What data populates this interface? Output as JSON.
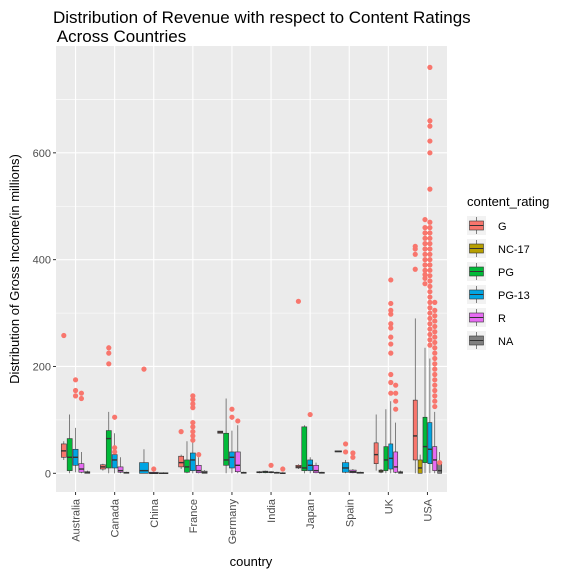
{
  "chart_data": {
    "type": "boxplot",
    "title_line1": "Distribution of Revenue with respect to Content Ratings",
    "title_line2": " Across Countries",
    "xlabel": "country",
    "ylabel": "Distribution of Gross Income(in millions)",
    "ylim": [
      -35,
      800
    ],
    "yticks": [
      0,
      200,
      400,
      600
    ],
    "grid": true,
    "legend": {
      "title": "content_rating",
      "placement": "right"
    },
    "series": [
      {
        "name": "G",
        "color": "#F8766D"
      },
      {
        "name": "NC-17",
        "color": "#B79F00"
      },
      {
        "name": "PG",
        "color": "#00BA38"
      },
      {
        "name": "PG-13",
        "color": "#00A5E3"
      },
      {
        "name": "R",
        "color": "#E76BF3"
      },
      {
        "name": "NA",
        "color": "#7F7F7F"
      }
    ],
    "categories": [
      "Australia",
      "Canada",
      "China",
      "France",
      "Germany",
      "India",
      "Japan",
      "Spain",
      "UK",
      "USA"
    ],
    "groups": [
      {
        "country": "Australia",
        "boxes": [
          {
            "series": "G",
            "q1": 30,
            "median": 42,
            "q3": 55,
            "lo": 25,
            "hi": 60
          },
          {
            "series": "PG",
            "q1": 5,
            "median": 30,
            "q3": 65,
            "lo": 0,
            "hi": 110
          },
          {
            "series": "PG-13",
            "q1": 15,
            "median": 30,
            "q3": 45,
            "lo": 2,
            "hi": 85
          },
          {
            "series": "R",
            "q1": 2,
            "median": 8,
            "q3": 18,
            "lo": 0,
            "hi": 40
          },
          {
            "series": "NA",
            "q1": 0,
            "median": 1,
            "q3": 3,
            "lo": 0,
            "hi": 5
          }
        ]
      },
      {
        "country": "Canada",
        "boxes": [
          {
            "series": "G",
            "q1": 8,
            "median": 12,
            "q3": 16,
            "lo": 5,
            "hi": 18
          },
          {
            "series": "PG",
            "q1": 10,
            "median": 65,
            "q3": 80,
            "lo": 0,
            "hi": 115
          },
          {
            "series": "PG-13",
            "q1": 10,
            "median": 25,
            "q3": 35,
            "lo": 0,
            "hi": 75
          },
          {
            "series": "R",
            "q1": 2,
            "median": 5,
            "q3": 12,
            "lo": 0,
            "hi": 30
          },
          {
            "series": "NA",
            "q1": 0,
            "median": 1,
            "q3": 2,
            "lo": 0,
            "hi": 3
          }
        ]
      },
      {
        "country": "China",
        "boxes": [
          {
            "series": "PG-13",
            "q1": 0,
            "median": 5,
            "q3": 20,
            "lo": 0,
            "hi": 45
          },
          {
            "series": "R",
            "q1": 0,
            "median": 0,
            "q3": 2,
            "lo": 0,
            "hi": 3
          },
          {
            "series": "NA",
            "q1": 0,
            "median": 0,
            "q3": 1,
            "lo": 0,
            "hi": 2
          }
        ]
      },
      {
        "country": "France",
        "boxes": [
          {
            "series": "G",
            "q1": 12,
            "median": 20,
            "q3": 32,
            "lo": 8,
            "hi": 35
          },
          {
            "series": "PG",
            "q1": 2,
            "median": 12,
            "q3": 25,
            "lo": 0,
            "hi": 60
          },
          {
            "series": "PG-13",
            "q1": 5,
            "median": 25,
            "q3": 38,
            "lo": 0,
            "hi": 80
          },
          {
            "series": "R",
            "q1": 1,
            "median": 5,
            "q3": 15,
            "lo": 0,
            "hi": 30
          },
          {
            "series": "NA",
            "q1": 0,
            "median": 1,
            "q3": 4,
            "lo": 0,
            "hi": 6
          }
        ]
      },
      {
        "country": "Germany",
        "boxes": [
          {
            "series": "G",
            "q1": 75,
            "median": 77,
            "q3": 79,
            "lo": 75,
            "hi": 79
          },
          {
            "series": "PG",
            "q1": 15,
            "median": 25,
            "q3": 75,
            "lo": 0,
            "hi": 140
          },
          {
            "series": "PG-13",
            "q1": 10,
            "median": 30,
            "q3": 40,
            "lo": 0,
            "hi": 80
          },
          {
            "series": "R",
            "q1": 3,
            "median": 15,
            "q3": 40,
            "lo": 0,
            "hi": 90
          },
          {
            "series": "NA",
            "q1": 0,
            "median": 1,
            "q3": 2,
            "lo": 0,
            "hi": 3
          }
        ]
      },
      {
        "country": "India",
        "boxes": [
          {
            "series": "G",
            "q1": 1,
            "median": 2,
            "q3": 3,
            "lo": 0,
            "hi": 4
          },
          {
            "series": "PG",
            "q1": 1,
            "median": 3,
            "q3": 4,
            "lo": 0,
            "hi": 5
          },
          {
            "series": "PG-13",
            "q1": 1,
            "median": 2,
            "q3": 3,
            "lo": 0,
            "hi": 4
          },
          {
            "series": "R",
            "q1": 0,
            "median": 1,
            "q3": 2,
            "lo": 0,
            "hi": 3
          },
          {
            "series": "NA",
            "q1": 0,
            "median": 0,
            "q3": 1,
            "lo": 0,
            "hi": 2
          }
        ]
      },
      {
        "country": "Japan",
        "boxes": [
          {
            "series": "G",
            "q1": 10,
            "median": 12,
            "q3": 15,
            "lo": 8,
            "hi": 17
          },
          {
            "series": "PG",
            "q1": 5,
            "median": 10,
            "q3": 87,
            "lo": 0,
            "hi": 90
          },
          {
            "series": "PG-13",
            "q1": 5,
            "median": 15,
            "q3": 25,
            "lo": 0,
            "hi": 30
          },
          {
            "series": "R",
            "q1": 1,
            "median": 5,
            "q3": 15,
            "lo": 0,
            "hi": 20
          },
          {
            "series": "NA",
            "q1": 0,
            "median": 1,
            "q3": 2,
            "lo": 0,
            "hi": 3
          }
        ]
      },
      {
        "country": "Spain",
        "boxes": [
          {
            "series": "G",
            "q1": 40,
            "median": 41,
            "q3": 42,
            "lo": 40,
            "hi": 42
          },
          {
            "series": "PG-13",
            "q1": 2,
            "median": 10,
            "q3": 20,
            "lo": 0,
            "hi": 25
          },
          {
            "series": "R",
            "q1": 1,
            "median": 3,
            "q3": 6,
            "lo": 0,
            "hi": 8
          },
          {
            "series": "NA",
            "q1": 0,
            "median": 1,
            "q3": 2,
            "lo": 0,
            "hi": 3
          }
        ]
      },
      {
        "country": "UK",
        "boxes": [
          {
            "series": "G",
            "q1": 18,
            "median": 35,
            "q3": 57,
            "lo": 5,
            "hi": 110
          },
          {
            "series": "NC-17",
            "q1": 2,
            "median": 4,
            "q3": 6,
            "lo": 0,
            "hi": 8
          },
          {
            "series": "PG",
            "q1": 5,
            "median": 25,
            "q3": 50,
            "lo": 0,
            "hi": 120
          },
          {
            "series": "PG-13",
            "q1": 8,
            "median": 28,
            "q3": 55,
            "lo": 0,
            "hi": 135
          },
          {
            "series": "R",
            "q1": 2,
            "median": 12,
            "q3": 40,
            "lo": 0,
            "hi": 95
          },
          {
            "series": "NA",
            "q1": 0,
            "median": 1,
            "q3": 3,
            "lo": 0,
            "hi": 5
          }
        ]
      },
      {
        "country": "USA",
        "boxes": [
          {
            "series": "G",
            "q1": 25,
            "median": 70,
            "q3": 137,
            "lo": 0,
            "hi": 290
          },
          {
            "series": "NC-17",
            "q1": 0,
            "median": 10,
            "q3": 25,
            "lo": 0,
            "hi": 35
          },
          {
            "series": "PG",
            "q1": 20,
            "median": 50,
            "q3": 105,
            "lo": 0,
            "hi": 235
          },
          {
            "series": "PG-13",
            "q1": 18,
            "median": 45,
            "q3": 95,
            "lo": 0,
            "hi": 215
          },
          {
            "series": "R",
            "q1": 5,
            "median": 25,
            "q3": 50,
            "lo": 0,
            "hi": 115
          },
          {
            "series": "NA",
            "q1": 0,
            "median": 5,
            "q3": 20,
            "lo": 0,
            "hi": 40
          }
        ]
      }
    ],
    "outliers": [
      {
        "country": "Australia",
        "series": "G",
        "values": [
          258
        ]
      },
      {
        "country": "Australia",
        "series": "PG-13",
        "values": [
          175,
          155,
          145
        ]
      },
      {
        "country": "Australia",
        "series": "R",
        "values": [
          150,
          140
        ]
      },
      {
        "country": "Canada",
        "series": "PG",
        "values": [
          235,
          225,
          205
        ]
      },
      {
        "country": "Canada",
        "series": "PG-13",
        "values": [
          105,
          48,
          40
        ]
      },
      {
        "country": "China",
        "series": "PG-13",
        "values": [
          195
        ]
      },
      {
        "country": "China",
        "series": "R",
        "values": [
          8
        ]
      },
      {
        "country": "France",
        "series": "G",
        "values": [
          78
        ]
      },
      {
        "country": "France",
        "series": "PG-13",
        "values": [
          145,
          138,
          130,
          123,
          95,
          87,
          78,
          70,
          62
        ]
      },
      {
        "country": "France",
        "series": "R",
        "values": [
          35
        ]
      },
      {
        "country": "Germany",
        "series": "PG-13",
        "values": [
          120,
          105
        ]
      },
      {
        "country": "Germany",
        "series": "R",
        "values": [
          98
        ]
      },
      {
        "country": "India",
        "series": "PG-13",
        "values": [
          15
        ]
      },
      {
        "country": "India",
        "series": "NA",
        "values": [
          8
        ]
      },
      {
        "country": "Japan",
        "series": "G",
        "values": [
          322
        ]
      },
      {
        "country": "Japan",
        "series": "PG-13",
        "values": [
          110
        ]
      },
      {
        "country": "Spain",
        "series": "PG-13",
        "values": [
          55,
          40
        ]
      },
      {
        "country": "Spain",
        "series": "R",
        "values": [
          38,
          30
        ]
      },
      {
        "country": "UK",
        "series": "PG-13",
        "values": [
          362,
          318,
          305,
          298,
          280,
          272,
          255,
          242,
          225,
          185,
          170,
          150
        ]
      },
      {
        "country": "UK",
        "series": "R",
        "values": [
          165,
          150,
          135,
          120
        ]
      },
      {
        "country": "USA",
        "series": "G",
        "values": [
          425,
          420,
          410,
          382
        ]
      },
      {
        "country": "USA",
        "series": "PG",
        "values": [
          475,
          460,
          450,
          440,
          430,
          420,
          410,
          400,
          390,
          380,
          372,
          365,
          355
        ]
      },
      {
        "country": "USA",
        "series": "PG-13",
        "values": [
          760,
          660,
          650,
          622,
          600,
          532,
          470,
          460,
          450,
          440,
          430,
          420,
          410,
          400,
          390,
          380,
          370,
          360,
          350,
          340,
          330,
          320,
          310,
          300,
          290,
          280,
          270,
          260,
          250,
          240
        ]
      },
      {
        "country": "USA",
        "series": "R",
        "values": [
          320,
          305,
          295,
          285,
          275,
          265,
          255,
          245,
          235,
          225,
          215,
          205,
          195,
          185,
          175,
          165,
          155,
          145,
          135,
          125
        ]
      },
      {
        "country": "USA",
        "series": "NA",
        "values": [
          20
        ]
      }
    ]
  }
}
